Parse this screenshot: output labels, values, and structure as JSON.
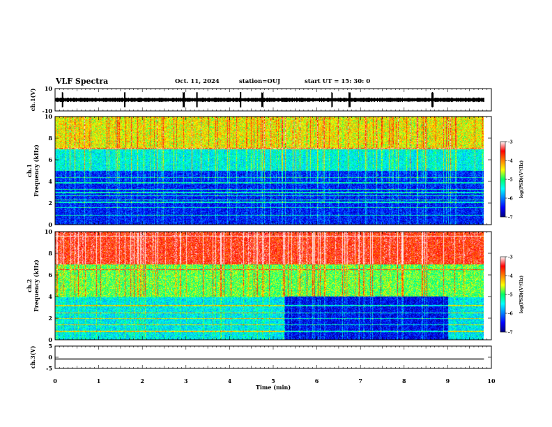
{
  "header": {
    "title": "VLF Spectra",
    "date": "Oct. 11, 2024",
    "station": "station=OUJ",
    "start": "start  UT =  15: 30: 0"
  },
  "chart_data": [
    {
      "type": "line",
      "name": "ch1-waveform",
      "ylabel": "ch.1(V)",
      "ylim": [
        -10,
        10
      ],
      "yticks": [
        "10",
        "-10"
      ],
      "xlim": [
        0,
        10
      ],
      "waveform": {
        "mean": 0.0,
        "amplitude_approx": 2,
        "spike_times_min": [
          0.17,
          1.6,
          2.95,
          3.25,
          4.25,
          4.75,
          6.35,
          6.75,
          8.65
        ]
      }
    },
    {
      "type": "heatmap",
      "name": "ch1-spectrogram",
      "ylabel": "ch.1\nFrequency (kHz)",
      "ylim": [
        0,
        10
      ],
      "yticks": [
        "0",
        "2",
        "4",
        "6",
        "8",
        "10"
      ],
      "xlim": [
        0,
        9.83
      ],
      "colorbar": {
        "label": "log(PSD)(V²/Hz)",
        "range": [
          -7,
          -3
        ],
        "ticks": [
          "-3",
          "-4",
          "-5",
          "-6",
          "-7"
        ]
      },
      "approx_levels": [
        {
          "freq_khz": [
            7,
            10
          ],
          "log_psd": -4.6
        },
        {
          "freq_khz": [
            5,
            7
          ],
          "log_psd": -5.6
        },
        {
          "freq_khz": [
            0,
            5
          ],
          "log_psd": -6.5
        }
      ],
      "lines_khz": [
        0.9,
        1.6,
        2.1,
        2.3,
        2.7,
        3.0,
        3.3,
        3.9,
        4.4,
        7.1
      ]
    },
    {
      "type": "heatmap",
      "name": "ch2-spectrogram",
      "ylabel": "ch.2\nFrequency (kHz)",
      "ylim": [
        0,
        10
      ],
      "yticks": [
        "0",
        "2",
        "4",
        "6",
        "8",
        "10"
      ],
      "xlim": [
        0,
        9.83
      ],
      "colorbar": {
        "label": "log(PSD)(V²/Hz)",
        "range": [
          -7,
          -3
        ],
        "ticks": [
          "-3",
          "-4",
          "-5",
          "-6",
          "-7"
        ]
      },
      "approx_levels": [
        {
          "freq_khz": [
            7,
            10
          ],
          "log_psd": -3.7
        },
        {
          "freq_khz": [
            4,
            7
          ],
          "log_psd": -5.0
        },
        {
          "freq_khz": [
            0,
            4
          ],
          "log_psd": -5.6
        }
      ],
      "quiet_interval": {
        "time_min": [
          5.25,
          9.0
        ],
        "freq_khz": [
          0,
          4
        ],
        "log_psd": -6.6
      },
      "lines_khz": [
        0.8,
        1.4,
        2.0,
        2.5,
        3.2,
        6.5,
        9.6
      ]
    },
    {
      "type": "line",
      "name": "ch3-waveform",
      "ylabel": "ch.3(V)",
      "ylim": [
        -5,
        5
      ],
      "yticks": [
        "5",
        "0",
        "-5"
      ],
      "xlim": [
        0,
        10
      ],
      "value": -0.8
    }
  ],
  "xaxis": {
    "label": "Time  (min)",
    "ticks": [
      "0",
      "1",
      "2",
      "3",
      "4",
      "5",
      "6",
      "7",
      "8",
      "9",
      "10"
    ]
  }
}
